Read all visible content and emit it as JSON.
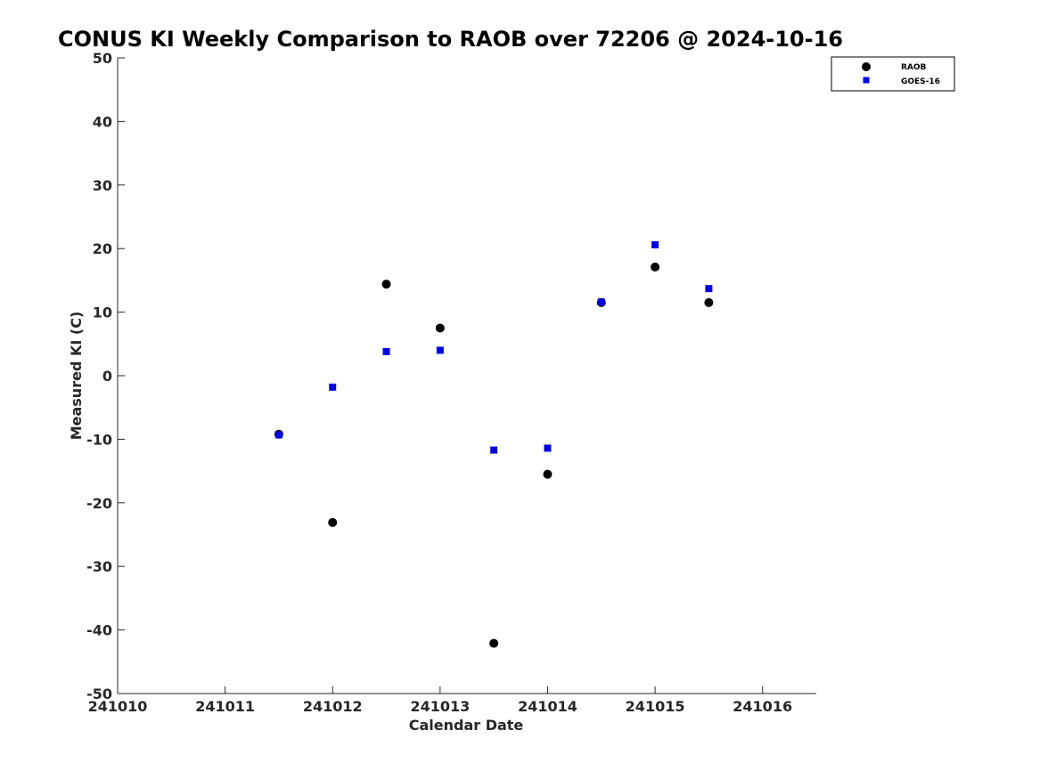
{
  "chart_data": {
    "type": "scatter",
    "title": "CONUS KI Weekly Comparison to RAOB over 72206 @ 2024-10-16",
    "xlabel": "Calendar Date",
    "ylabel": "Measured KI (C)",
    "xlim": [
      241010,
      241016.5
    ],
    "ylim": [
      -50,
      50
    ],
    "xticks": [
      241010,
      241011,
      241012,
      241013,
      241014,
      241015,
      241016
    ],
    "yticks": [
      50,
      40,
      30,
      20,
      10,
      0,
      -10,
      -20,
      -30,
      -40,
      -50
    ],
    "grid": false,
    "legend_position": "top-right",
    "series": [
      {
        "name": "RAOB",
        "marker": "circle",
        "color": "#000000",
        "x": [
          241011.5,
          241012,
          241012.5,
          241013,
          241013.5,
          241014,
          241014.5,
          241015,
          241015.5
        ],
        "y": [
          -9.2,
          -23.1,
          14.4,
          7.5,
          -42.1,
          -15.5,
          11.5,
          17.1,
          11.5
        ]
      },
      {
        "name": "GOES-16",
        "marker": "square",
        "color": "#0000dd",
        "x": [
          241011.5,
          241012,
          241012.5,
          241013,
          241013.5,
          241014,
          241014.5,
          241015,
          241015.5
        ],
        "y": [
          -9.3,
          -1.8,
          3.8,
          4.0,
          -11.7,
          -11.4,
          11.6,
          20.6,
          13.7
        ]
      }
    ]
  }
}
